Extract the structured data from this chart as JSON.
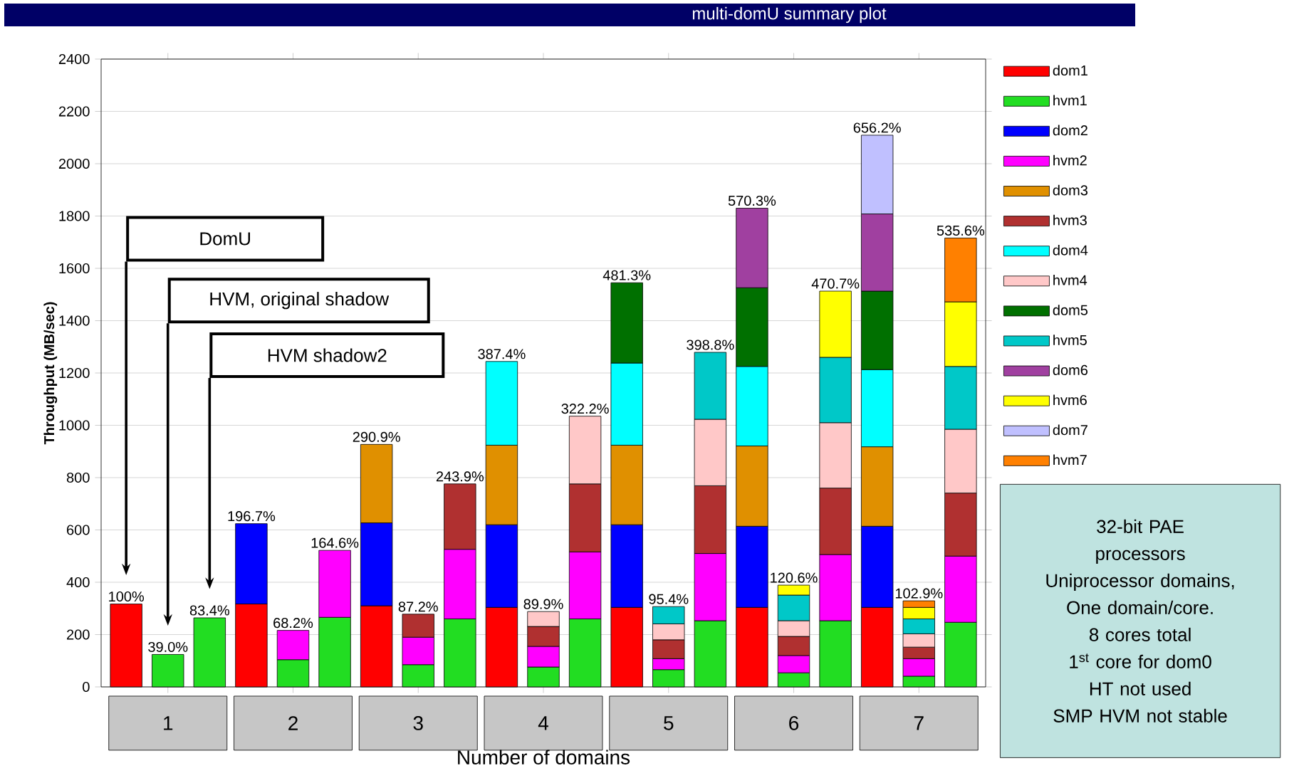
{
  "chart_data": {
    "type": "bar",
    "stacked": true,
    "title": "multi-domU summary plot",
    "xlabel": "Number of domains",
    "ylabel": "Throughput (MB/sec)",
    "categories": [
      null,
      "1",
      null,
      null,
      "2",
      null,
      null,
      "3",
      null,
      null,
      "4",
      null,
      null,
      "5",
      null,
      null,
      "6",
      null,
      null,
      "7",
      null
    ],
    "ylim": [
      0,
      2400
    ],
    "yticks": [
      0,
      200,
      400,
      600,
      800,
      1000,
      1200,
      1400,
      1600,
      1800,
      2000,
      2200,
      2400
    ],
    "grid": "y",
    "legend": "right",
    "series": [
      {
        "name": "dom1",
        "color": "#ff0000",
        "values": [
          317,
          null,
          null,
          317,
          null,
          null,
          310,
          null,
          null,
          304,
          null,
          null,
          304,
          null,
          null,
          304,
          null,
          null,
          304,
          null,
          null
        ]
      },
      {
        "name": "hvm1",
        "color": "#22dd22",
        "values": [
          null,
          124,
          264,
          null,
          104,
          266,
          null,
          85,
          260,
          null,
          76,
          260,
          null,
          66,
          253,
          null,
          54,
          253,
          null,
          41,
          247
        ]
      },
      {
        "name": "dom2",
        "color": "#0000ff",
        "values": [
          null,
          null,
          null,
          307,
          null,
          null,
          317,
          null,
          null,
          316,
          null,
          null,
          316,
          null,
          null,
          310,
          null,
          null,
          310,
          null,
          null
        ]
      },
      {
        "name": "hvm2",
        "color": "#ff00ff",
        "values": [
          null,
          null,
          null,
          null,
          112,
          256,
          null,
          105,
          266,
          null,
          79,
          256,
          null,
          42,
          257,
          null,
          66,
          253,
          null,
          67,
          253
        ]
      },
      {
        "name": "dom3",
        "color": "#e09000",
        "values": [
          null,
          null,
          null,
          null,
          null,
          null,
          300,
          null,
          null,
          304,
          null,
          null,
          304,
          null,
          null,
          307,
          null,
          null,
          304,
          null,
          null
        ]
      },
      {
        "name": "hvm3",
        "color": "#b03030",
        "values": [
          null,
          null,
          null,
          null,
          null,
          null,
          null,
          88,
          250,
          null,
          76,
          260,
          null,
          72,
          259,
          null,
          73,
          254,
          null,
          44,
          241
        ]
      },
      {
        "name": "dom4",
        "color": "#00ffff",
        "values": [
          null,
          null,
          null,
          null,
          null,
          null,
          null,
          null,
          null,
          320,
          null,
          null,
          314,
          null,
          null,
          304,
          null,
          null,
          295,
          null,
          null
        ]
      },
      {
        "name": "hvm4",
        "color": "#ffc8c8",
        "values": [
          null,
          null,
          null,
          null,
          null,
          null,
          null,
          null,
          null,
          null,
          57,
          259,
          null,
          61,
          254,
          null,
          60,
          250,
          null,
          51,
          244
        ]
      },
      {
        "name": "dom5",
        "color": "#007000",
        "values": [
          null,
          null,
          null,
          null,
          null,
          null,
          null,
          null,
          null,
          null,
          null,
          null,
          307,
          null,
          null,
          301,
          null,
          null,
          300,
          null,
          null
        ]
      },
      {
        "name": "hvm5",
        "color": "#00c8c8",
        "values": [
          null,
          null,
          null,
          null,
          null,
          null,
          null,
          null,
          null,
          null,
          null,
          null,
          null,
          66,
          256,
          null,
          98,
          250,
          null,
          57,
          240
        ]
      },
      {
        "name": "dom6",
        "color": "#a040a0",
        "values": [
          null,
          null,
          null,
          null,
          null,
          null,
          null,
          null,
          null,
          null,
          null,
          null,
          null,
          null,
          null,
          304,
          null,
          null,
          295,
          null,
          null
        ]
      },
      {
        "name": "hvm6",
        "color": "#ffff00",
        "values": [
          null,
          null,
          null,
          null,
          null,
          null,
          null,
          null,
          null,
          null,
          null,
          null,
          null,
          null,
          null,
          null,
          38,
          253,
          null,
          44,
          247
        ]
      },
      {
        "name": "dom7",
        "color": "#c0c0ff",
        "values": [
          null,
          null,
          null,
          null,
          null,
          null,
          null,
          null,
          null,
          null,
          null,
          null,
          null,
          null,
          null,
          null,
          null,
          null,
          301,
          null,
          null
        ]
      },
      {
        "name": "hvm7",
        "color": "#ff8000",
        "values": [
          null,
          null,
          null,
          null,
          null,
          null,
          null,
          null,
          null,
          null,
          null,
          null,
          null,
          null,
          null,
          null,
          null,
          null,
          null,
          25,
          244
        ]
      }
    ],
    "annotations": [
      "DomU",
      "HVM, original shadow",
      "HVM shadow2",
      "32-bit PAE",
      "processors",
      "Uniprocessor domains,",
      "One domain/core.",
      "8 cores total",
      "1$^{st}$ core for dom0",
      "HT not used",
      "SMP HVM not stable",
      {
        "text": "100%",
        "y": 317
      },
      {
        "text": "39.0%",
        "y": 124
      },
      {
        "text": "83.4%",
        "y": 264
      },
      {
        "text": "196.7%",
        "y": 624
      },
      {
        "text": "68.2%",
        "x": "2",
        "y": 216
      },
      {
        "text": "164.6%",
        "y": 522
      },
      {
        "text": "290.9%",
        "y": 927
      },
      {
        "text": "87.2%",
        "x": "3",
        "y": 278
      },
      {
        "text": "243.9%",
        "y": 776
      },
      {
        "text": "387.4%",
        "y": 1244
      },
      {
        "text": "89.9%",
        "x": "4",
        "y": 288
      },
      {
        "text": "322.2%",
        "y": 1035
      },
      {
        "text": "481.3%",
        "y": 1545
      },
      {
        "text": "95.4%",
        "x": "5",
        "y": 307
      },
      {
        "text": "398.8%",
        "y": 1279
      },
      {
        "text": "570.3%",
        "y": 1830
      },
      {
        "text": "120.6%",
        "x": "6",
        "y": 389
      },
      {
        "text": "470.7%",
        "y": 1513
      },
      {
        "text": "656.2%",
        "y": 2109
      },
      {
        "text": "102.9%",
        "x": "7",
        "y": 329
      },
      {
        "text": "535.6%",
        "y": 1716
      }
    ]
  }
}
